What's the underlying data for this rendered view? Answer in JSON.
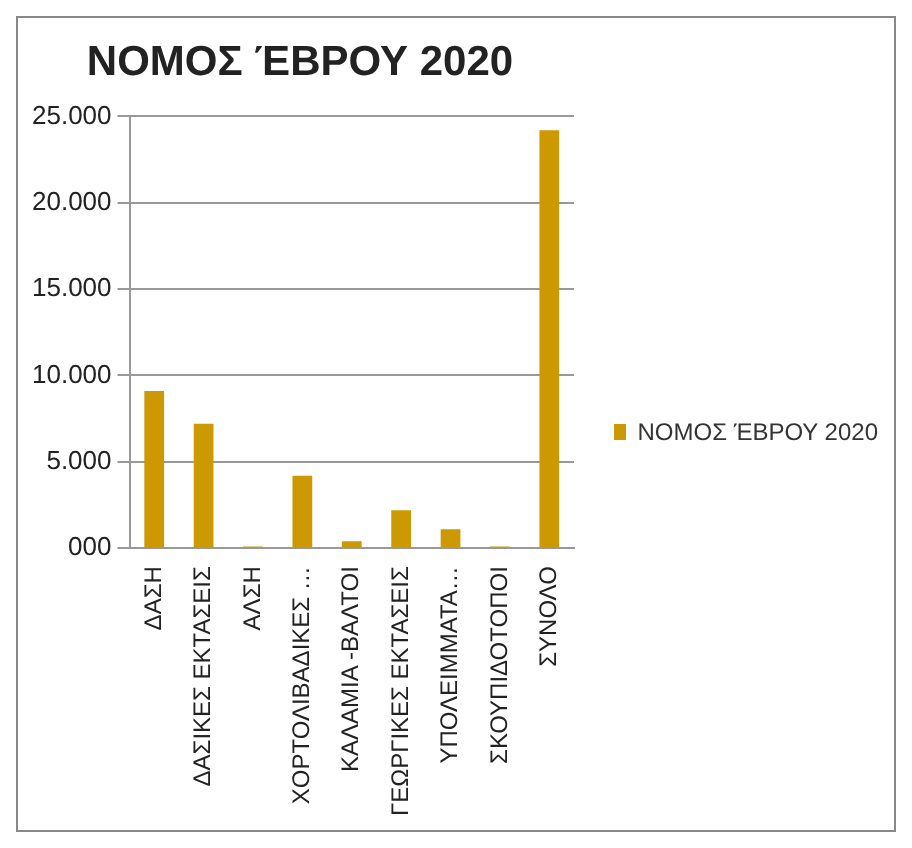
{
  "chart_data": {
    "type": "bar",
    "title": "ΝΟΜΟΣ ΈΒΡΟΥ 2020",
    "categories": [
      "ΔΑΣΗ",
      "ΔΑΣΙΚΕΣ ΕΚΤΑΣΕΙΣ",
      "ΑΛΣΗ",
      "ΧΟΡΤΟΛΙΒΑΔΙΚΕΣ …",
      "ΚΑΛΑΜΙΑ -ΒΑΛΤΟΙ",
      "ΓΕΩΡΓΙΚΕΣ ΕΚΤΑΣΕΙΣ",
      "ΥΠΟΛΕΙΜΜΑΤΑ…",
      "ΣΚΟΥΠΙΔΟΤΟΠΟΙ",
      "ΣΥΝΟΛΟ"
    ],
    "series": [
      {
        "name": "ΝΟΜΟΣ ΈΒΡΟΥ 2020",
        "color": "#cc9900",
        "values": [
          9100,
          7200,
          100,
          4200,
          400,
          2200,
          1100,
          100,
          24200
        ]
      }
    ],
    "ylim": [
      0,
      25000
    ],
    "yticks": [
      {
        "value": 0,
        "label": "000"
      },
      {
        "value": 5000,
        "label": "5.000"
      },
      {
        "value": 10000,
        "label": "10.000"
      },
      {
        "value": 15000,
        "label": "15.000"
      },
      {
        "value": 20000,
        "label": "20.000"
      },
      {
        "value": 25000,
        "label": "25.000"
      }
    ],
    "grid": "y",
    "legend": "right"
  }
}
